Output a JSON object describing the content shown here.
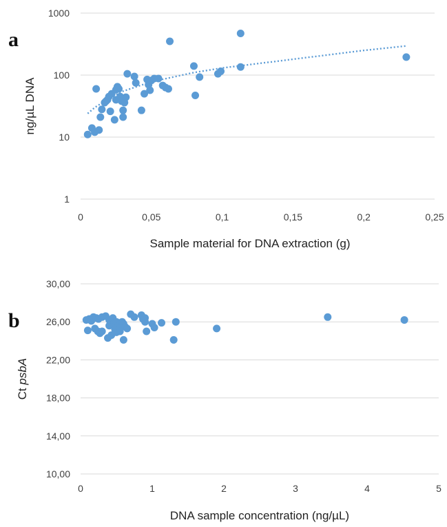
{
  "chart_data": [
    {
      "panel": "a",
      "type": "scatter",
      "title": "",
      "xlabel": "Sample material for DNA extraction (g)",
      "ylabel": "ng/µL DNA",
      "yscale": "log",
      "xlim": [
        0,
        0.25
      ],
      "ylim": [
        1,
        1000
      ],
      "x_ticks": [
        "0",
        "0,05",
        "0,1",
        "0,15",
        "0,2",
        "0,25"
      ],
      "y_ticks": [
        "1",
        "10",
        "100",
        "1000"
      ],
      "grid": "horizontal",
      "legend": "none",
      "color": "#5b9bd5",
      "trendline": {
        "type": "power",
        "style": "dotted",
        "points": [
          [
            0.005,
            24
          ],
          [
            0.01,
            30
          ],
          [
            0.02,
            42
          ],
          [
            0.03,
            55
          ],
          [
            0.05,
            78
          ],
          [
            0.08,
            110
          ],
          [
            0.1,
            130
          ],
          [
            0.15,
            180
          ],
          [
            0.2,
            250
          ],
          [
            0.23,
            295
          ]
        ]
      },
      "points": [
        [
          0.005,
          11
        ],
        [
          0.008,
          14
        ],
        [
          0.01,
          12
        ],
        [
          0.011,
          60
        ],
        [
          0.013,
          13
        ],
        [
          0.014,
          21
        ],
        [
          0.015,
          28
        ],
        [
          0.017,
          36
        ],
        [
          0.018,
          38
        ],
        [
          0.019,
          40
        ],
        [
          0.02,
          45
        ],
        [
          0.021,
          26
        ],
        [
          0.022,
          50
        ],
        [
          0.024,
          19
        ],
        [
          0.025,
          40
        ],
        [
          0.025,
          58
        ],
        [
          0.026,
          65
        ],
        [
          0.027,
          60
        ],
        [
          0.028,
          45
        ],
        [
          0.029,
          38
        ],
        [
          0.03,
          27
        ],
        [
          0.03,
          21
        ],
        [
          0.031,
          36
        ],
        [
          0.032,
          44
        ],
        [
          0.033,
          105
        ],
        [
          0.038,
          95
        ],
        [
          0.039,
          75
        ],
        [
          0.043,
          27
        ],
        [
          0.045,
          50
        ],
        [
          0.047,
          85
        ],
        [
          0.048,
          70
        ],
        [
          0.049,
          57
        ],
        [
          0.05,
          82
        ],
        [
          0.052,
          88
        ],
        [
          0.055,
          88
        ],
        [
          0.058,
          68
        ],
        [
          0.06,
          63
        ],
        [
          0.062,
          60
        ],
        [
          0.063,
          350
        ],
        [
          0.08,
          140
        ],
        [
          0.081,
          47
        ],
        [
          0.084,
          93
        ],
        [
          0.097,
          105
        ],
        [
          0.099,
          115
        ],
        [
          0.113,
          470
        ],
        [
          0.113,
          135
        ],
        [
          0.23,
          195
        ]
      ]
    },
    {
      "panel": "b",
      "type": "scatter",
      "title": "",
      "xlabel": "DNA sample concentration  (ng/µL)",
      "ylabel_prefix": "Ct ",
      "ylabel_italic": "psbA",
      "xlim": [
        0,
        5
      ],
      "ylim": [
        10,
        30
      ],
      "x_ticks": [
        "0",
        "1",
        "2",
        "3",
        "4",
        "5"
      ],
      "y_ticks": [
        "10,00",
        "14,00",
        "18,00",
        "22,00",
        "26,00",
        "30,00"
      ],
      "grid": "horizontal",
      "legend": "none",
      "color": "#5b9bd5",
      "points": [
        [
          0.08,
          26.2
        ],
        [
          0.1,
          25.1
        ],
        [
          0.12,
          26.3
        ],
        [
          0.15,
          26.1
        ],
        [
          0.18,
          26.5
        ],
        [
          0.2,
          25.3
        ],
        [
          0.22,
          26.4
        ],
        [
          0.24,
          25.0
        ],
        [
          0.25,
          26.3
        ],
        [
          0.27,
          24.8
        ],
        [
          0.3,
          26.5
        ],
        [
          0.3,
          25.0
        ],
        [
          0.35,
          26.6
        ],
        [
          0.38,
          24.3
        ],
        [
          0.4,
          26.2
        ],
        [
          0.4,
          25.6
        ],
        [
          0.42,
          25.8
        ],
        [
          0.43,
          24.6
        ],
        [
          0.45,
          26.4
        ],
        [
          0.47,
          25.9
        ],
        [
          0.48,
          25.2
        ],
        [
          0.5,
          26.0
        ],
        [
          0.5,
          24.9
        ],
        [
          0.52,
          25.5
        ],
        [
          0.55,
          25.7
        ],
        [
          0.55,
          25.0
        ],
        [
          0.58,
          26.0
        ],
        [
          0.6,
          24.1
        ],
        [
          0.6,
          25.8
        ],
        [
          0.62,
          25.5
        ],
        [
          0.65,
          25.3
        ],
        [
          0.7,
          26.8
        ],
        [
          0.75,
          26.5
        ],
        [
          0.85,
          26.7
        ],
        [
          0.87,
          26.3
        ],
        [
          0.9,
          26.4
        ],
        [
          0.9,
          26.0
        ],
        [
          0.92,
          25.0
        ],
        [
          1.0,
          25.8
        ],
        [
          1.03,
          25.4
        ],
        [
          1.13,
          25.9
        ],
        [
          1.3,
          24.1
        ],
        [
          1.33,
          26.0
        ],
        [
          1.9,
          25.3
        ],
        [
          3.45,
          26.5
        ],
        [
          4.52,
          26.2
        ]
      ]
    }
  ]
}
